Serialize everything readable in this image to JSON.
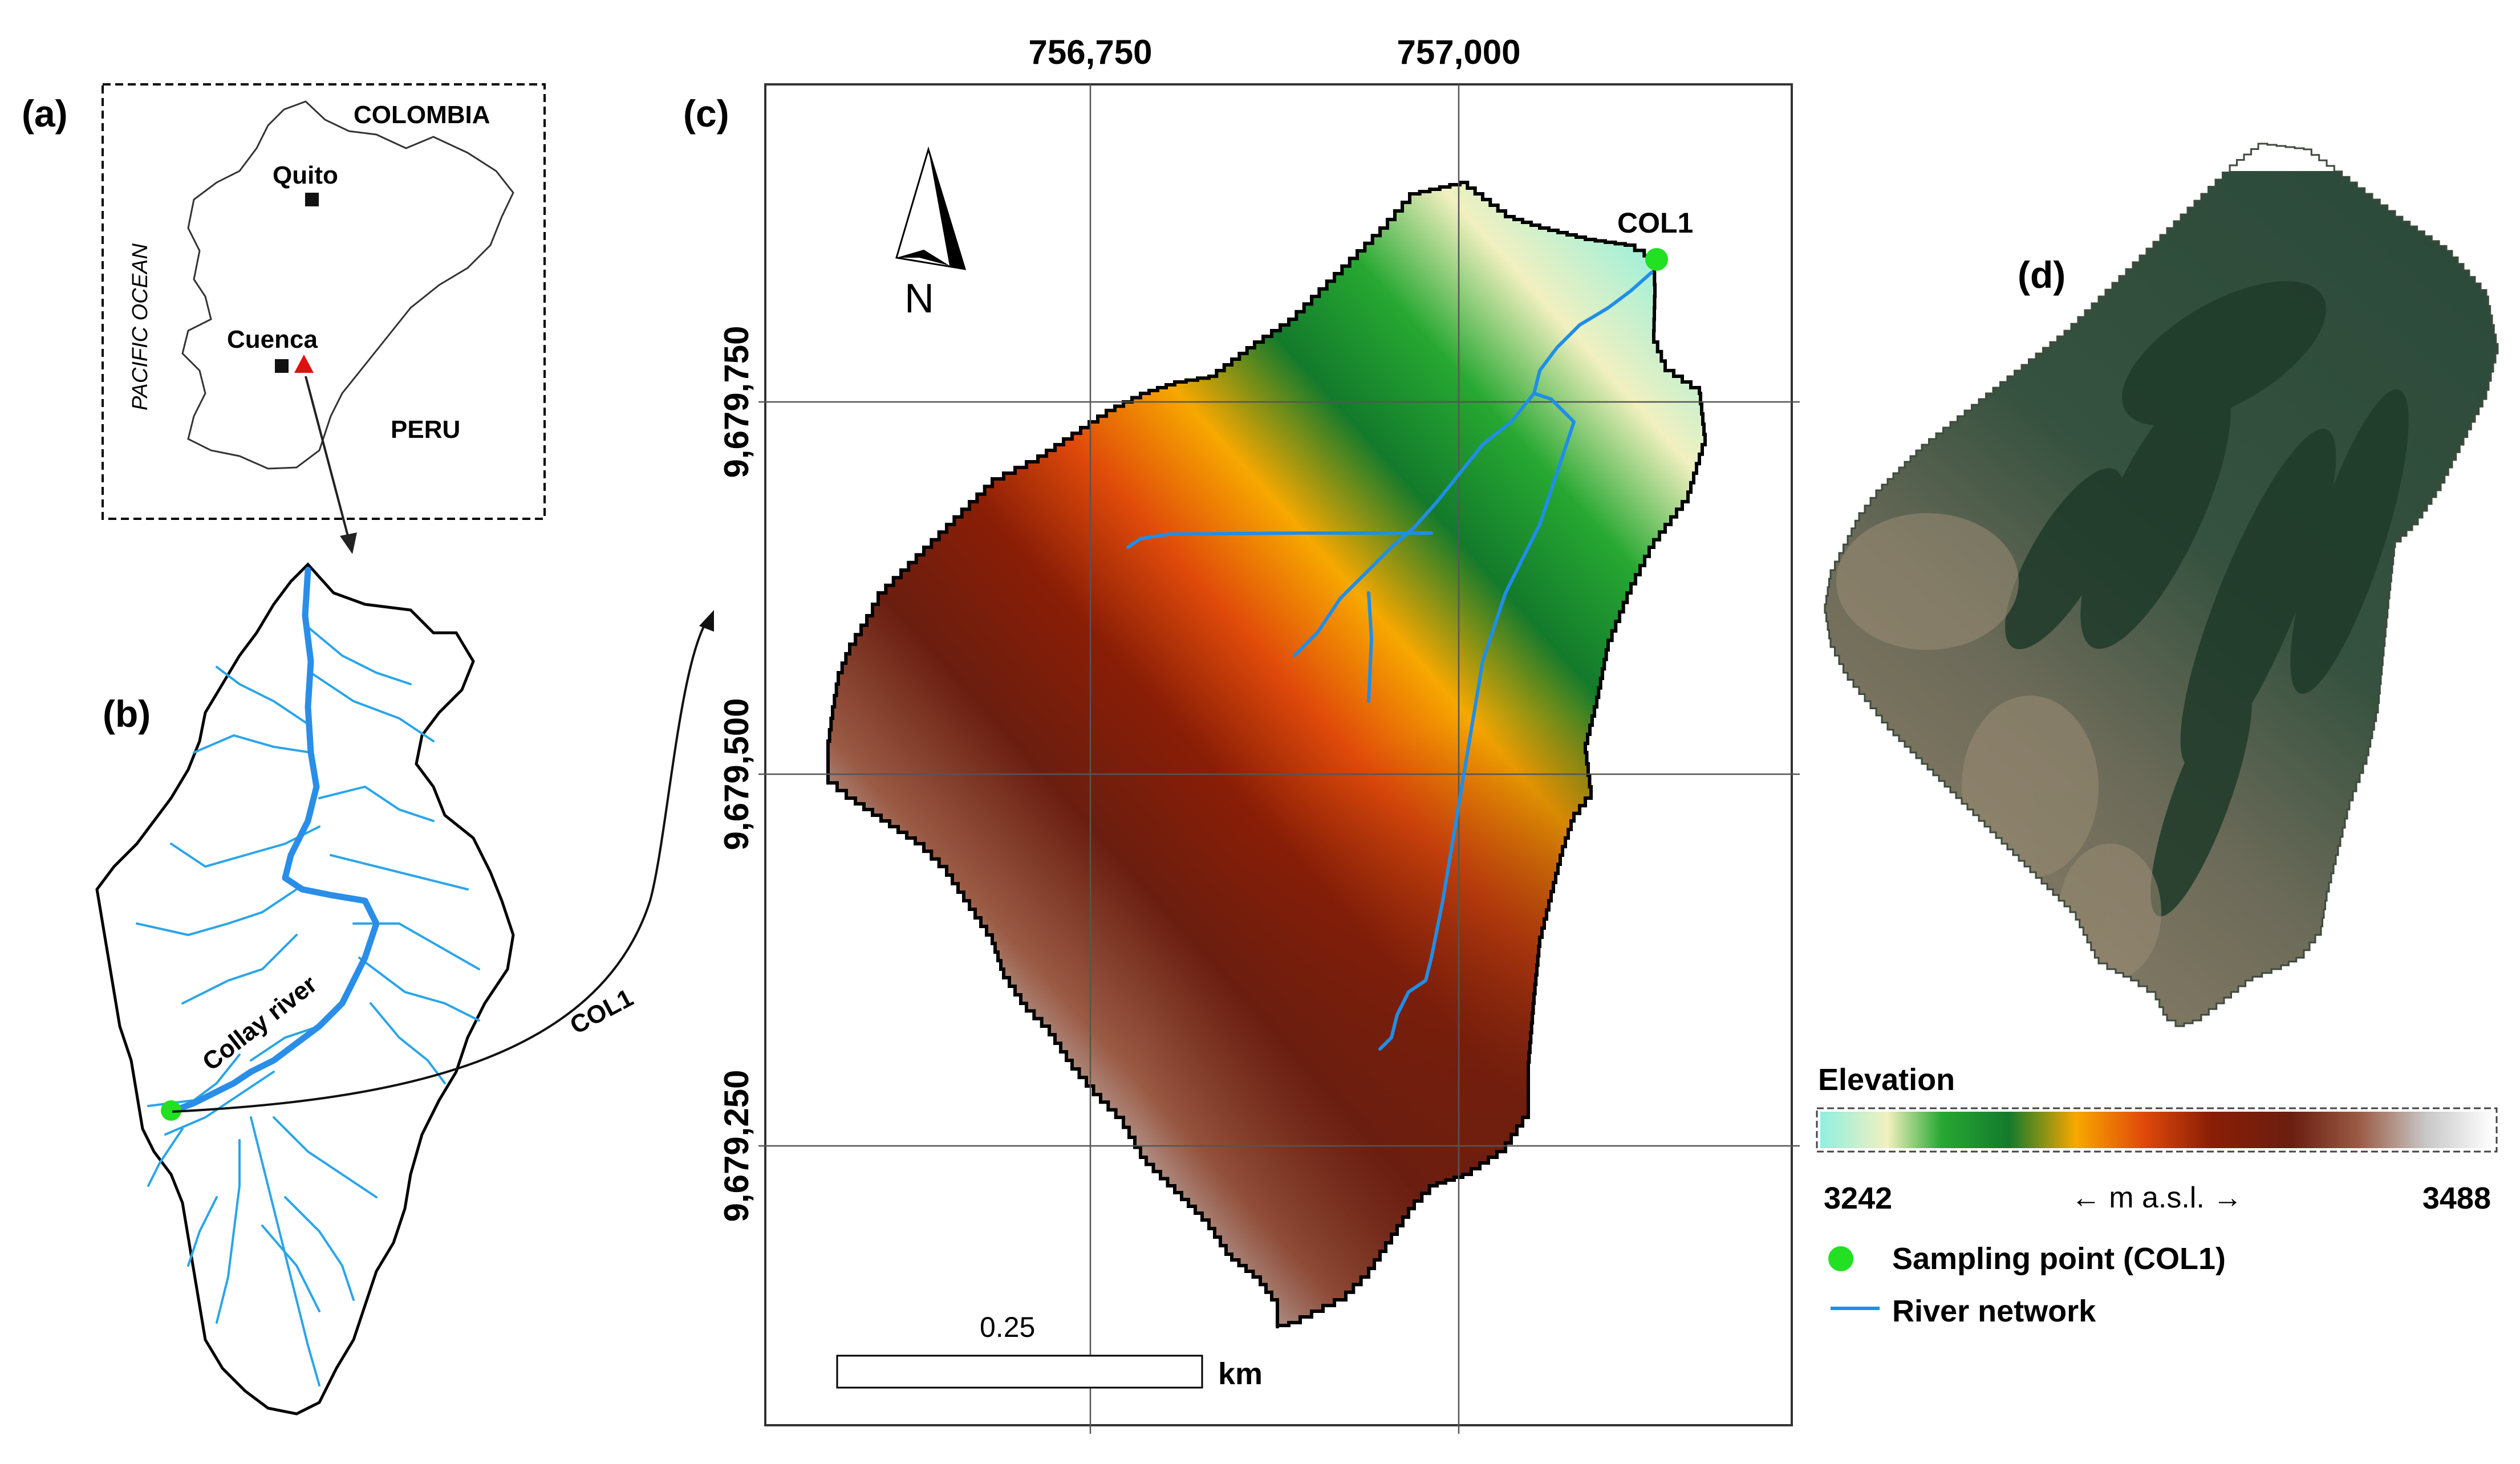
{
  "panel_a": {
    "label": "(a)",
    "countries": {
      "north": "COLOMBIA",
      "south": "PERU"
    },
    "ocean": "PACIFIC OCEAN",
    "cities": [
      "Quito",
      "Cuenca"
    ]
  },
  "panel_b": {
    "label": "(b)",
    "river_name": "Collay river",
    "arrow_label": "COL1"
  },
  "panel_c": {
    "label": "(c)",
    "easting_ticks": [
      "756,750",
      "757,000"
    ],
    "northing_ticks": [
      "9,679,750",
      "9,679,500",
      "9,679,250"
    ],
    "north_label": "N",
    "point_label": "COL1",
    "scale_value": "0.25",
    "scale_unit": "km"
  },
  "panel_d": {
    "label": "(d)"
  },
  "legend": {
    "title": "Elevation",
    "min": "3242",
    "max": "3488",
    "unit": "← m a.s.l. →",
    "items": [
      {
        "label": "Sampling point (COL1)",
        "color": "#22e022",
        "symbol": "circle"
      },
      {
        "label": "River network",
        "color": "#1f8ee8",
        "symbol": "line"
      }
    ]
  },
  "colors": {
    "river": "#1f8ee8",
    "sampling_point": "#22e022",
    "city_marker": "#111111",
    "study_marker": "#e01010",
    "elevation_ramp": [
      "#8ff0e0",
      "#f2f0c0",
      "#27a832",
      "#137a2c",
      "#f7a800",
      "#e04a0a",
      "#8a1e06",
      "#6a1e10",
      "#9a5a44",
      "#c8c8c8",
      "#ffffff"
    ]
  }
}
